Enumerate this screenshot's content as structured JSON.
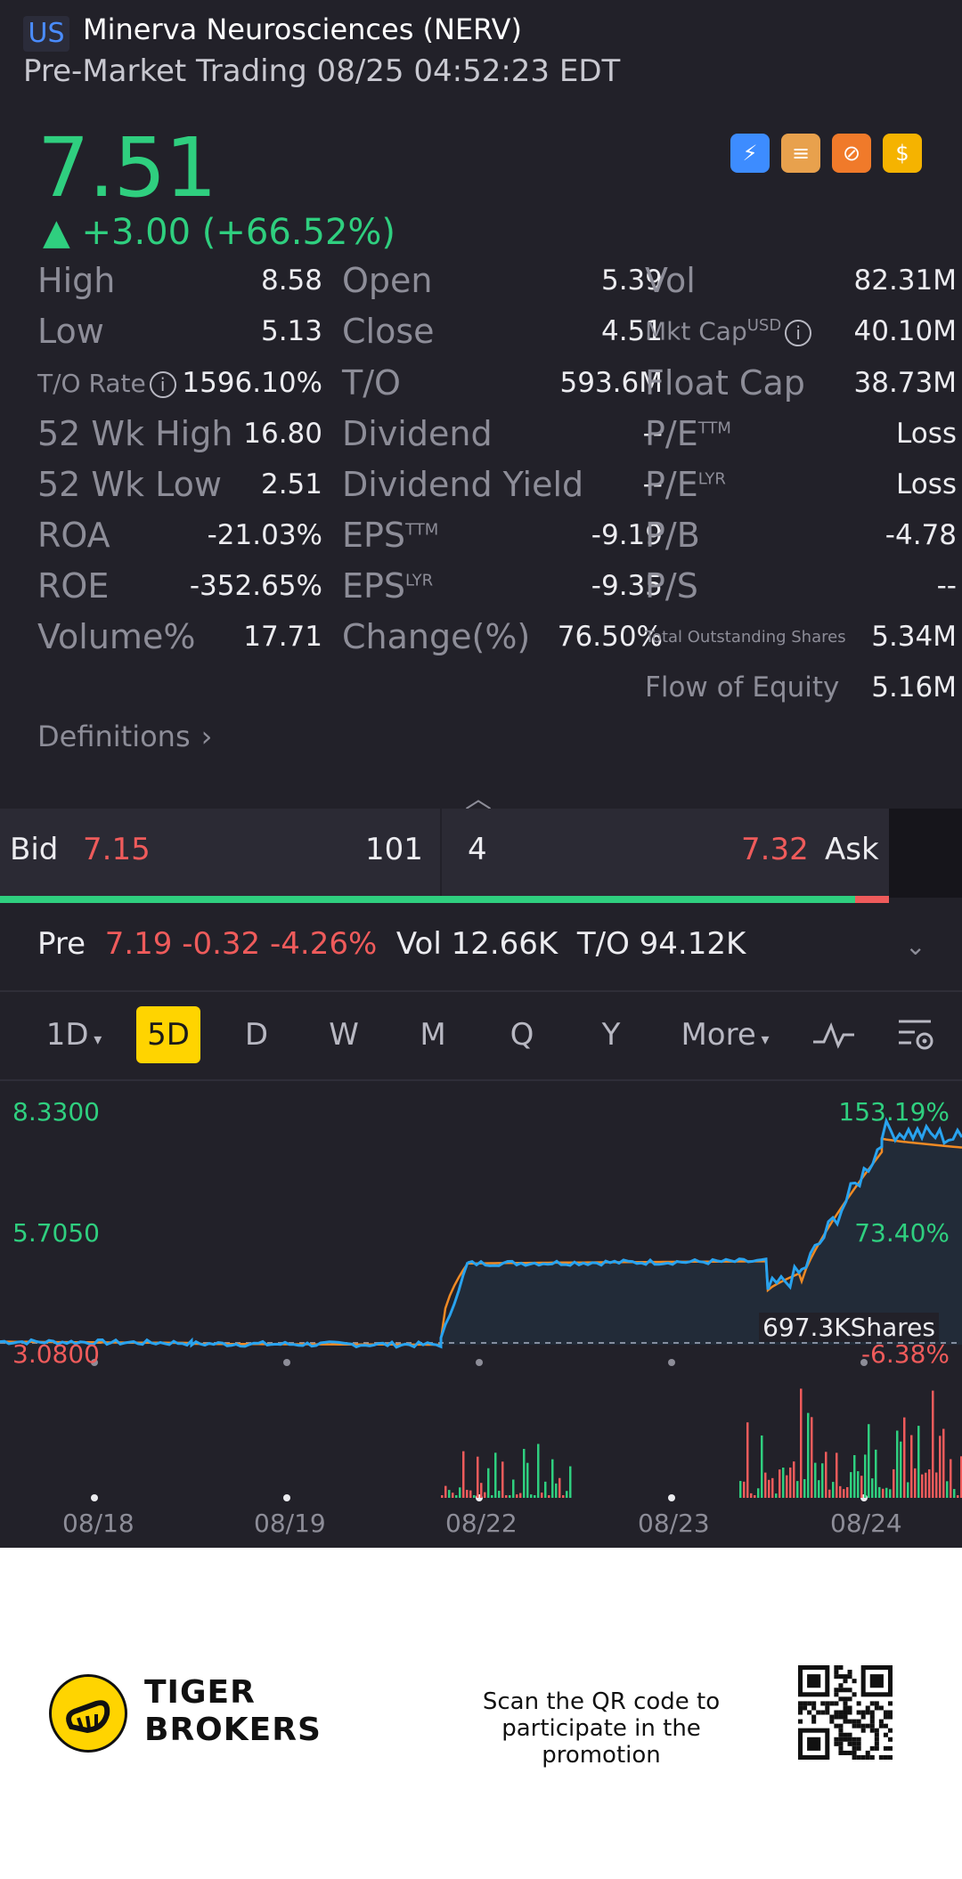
{
  "header": {
    "market": "US",
    "name": "Minerva Neurosciences (NERV)",
    "session": "Pre-Market Trading 08/25 04:52:23 EDT"
  },
  "quote": {
    "price": "7.51",
    "change": "▲ +3.00 (+66.52%)",
    "badges": [
      {
        "icon": "lightning-1-icon",
        "color": "#3d8cff"
      },
      {
        "icon": "layers-a-icon",
        "color": "#f0a24a"
      },
      {
        "icon": "chart-swap-icon",
        "color": "#f07a2a"
      },
      {
        "icon": "dollar-icon",
        "color": "#f5b300"
      }
    ]
  },
  "stats": {
    "high": {
      "label": "High",
      "value": "8.58"
    },
    "open": {
      "label": "Open",
      "value": "5.39"
    },
    "vol": {
      "label": "Vol",
      "value": "82.31M"
    },
    "low": {
      "label": "Low",
      "value": "5.13"
    },
    "close": {
      "label": "Close",
      "value": "4.51"
    },
    "mktcap": {
      "label": "Mkt Cap",
      "sup": "USD",
      "value": "40.10M"
    },
    "to_rate": {
      "label": "T/O Rate",
      "value": "1596.10%"
    },
    "to": {
      "label": "T/O",
      "value": "593.6M"
    },
    "float_cap": {
      "label": "Float Cap",
      "value": "38.73M"
    },
    "wk52_high": {
      "label": "52 Wk High",
      "value": "16.80"
    },
    "dividend": {
      "label": "Dividend",
      "value": "--"
    },
    "pe_ttm": {
      "label": "P/E",
      "sup": "TTM",
      "value": "Loss"
    },
    "wk52_low": {
      "label": "52 Wk Low",
      "value": "2.51"
    },
    "div_yield": {
      "label": "Dividend Yield",
      "value": "--"
    },
    "pe_lyr": {
      "label": "P/E",
      "sup": "LYR",
      "value": "Loss"
    },
    "roa": {
      "label": "ROA",
      "value": "-21.03%"
    },
    "eps_ttm": {
      "label": "EPS",
      "sup": "TTM",
      "value": "-9.19"
    },
    "pb": {
      "label": "P/B",
      "value": "-4.78"
    },
    "roe": {
      "label": "ROE",
      "value": "-352.65%"
    },
    "eps_lyr": {
      "label": "EPS",
      "sup": "LYR",
      "value": "-9.35"
    },
    "ps": {
      "label": "P/S",
      "value": "--"
    },
    "volume_pct": {
      "label": "Volume%",
      "value": "17.71"
    },
    "change_pct": {
      "label": "Change(%)",
      "value": "76.50%"
    },
    "total_shares": {
      "label": "Total Outstanding Shares",
      "value": "5.34M"
    },
    "flow_equity": {
      "label": "Flow of Equity",
      "value": "5.16M"
    }
  },
  "definitions_label": "Definitions",
  "bidask": {
    "bid_label": "Bid",
    "bid_price": "7.15",
    "bid_size": "101",
    "ask_size": "4",
    "ask_price": "7.32",
    "ask_label": "Ask",
    "bid_share": 0.962
  },
  "pre_market": {
    "label": "Pre",
    "price": "7.19",
    "change": "-0.32",
    "change_pct": "-4.26%",
    "vol_label": "Vol",
    "vol": "12.66K",
    "to_label": "T/O",
    "to": "94.12K"
  },
  "periods": {
    "items": [
      "1D",
      "5D",
      "D",
      "W",
      "M",
      "Q",
      "Y",
      "More"
    ],
    "active": "5D",
    "tools": [
      "indicator-icon",
      "chart-settings-icon"
    ]
  },
  "chart": {
    "y_labels_left": [
      "8.3300",
      "5.7050",
      "3.0800"
    ],
    "y_labels_right": [
      "153.19%",
      "73.40%",
      "-6.38%"
    ],
    "volume_label": "697.3KShares",
    "x_labels": [
      "08/18",
      "08/19",
      "08/22",
      "08/23",
      "08/24"
    ],
    "colors": {
      "price": "#29a3ef",
      "avg": "#f08a24",
      "up": "#2fcf7f",
      "down": "#ef5b5b"
    }
  },
  "chart_data": {
    "type": "line",
    "x": [
      "08/18",
      "08/19",
      "08/22",
      "08/23",
      "08/24"
    ],
    "ylim": [
      3.08,
      8.33
    ],
    "series": [
      {
        "values": [
          3.15,
          3.08,
          5.0,
          4.95,
          8.1
        ]
      }
    ]
  },
  "footer": {
    "brand_line1": "TIGER",
    "brand_line2": "BROKERS",
    "promo_line1": "Scan the QR code to",
    "promo_line2": "participate in the promotion"
  }
}
